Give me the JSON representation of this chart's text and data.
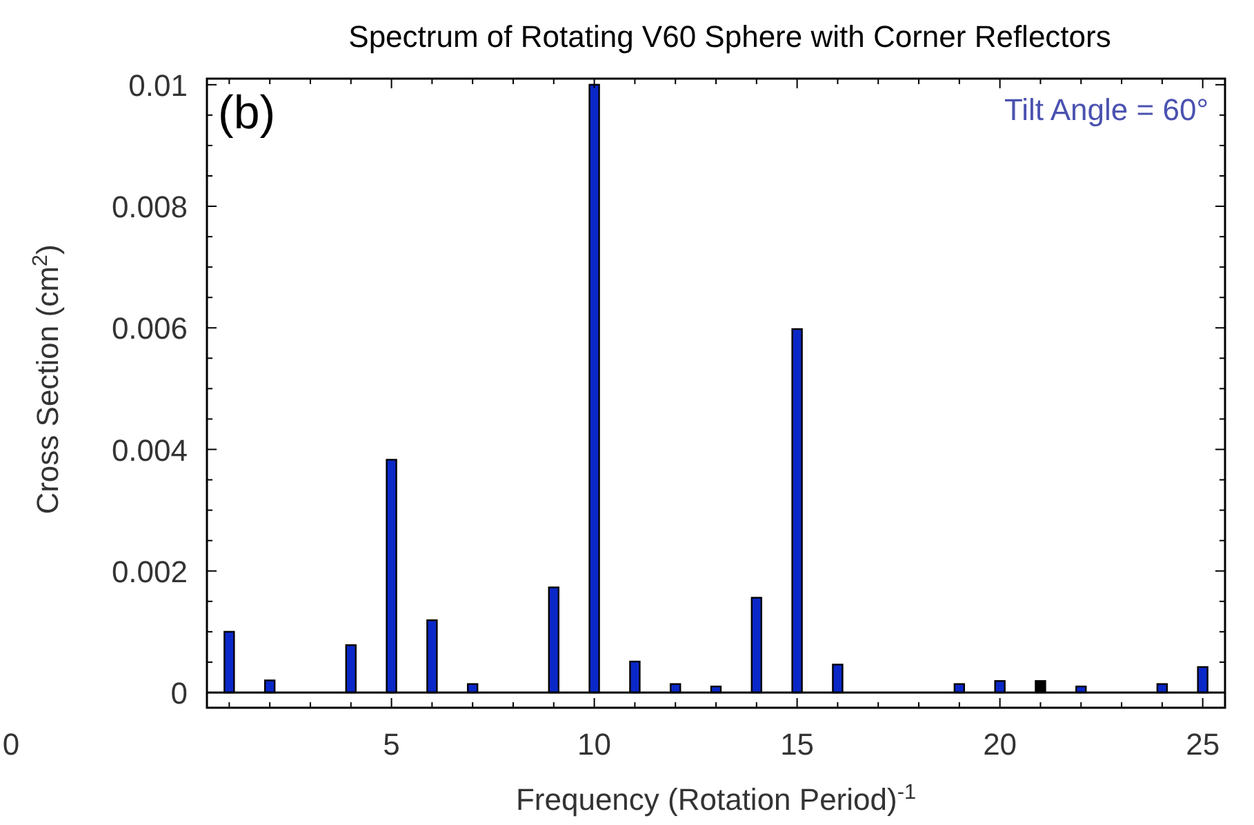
{
  "chart_data": {
    "type": "bar",
    "title": "Spectrum of Rotating V60 Sphere with Corner Reflectors",
    "xlabel": "Frequency (Rotation Period)$^{-1}$",
    "ylabel": "Cross Section (cm$^{2}$)",
    "annotations": [
      "(b)",
      "Tilt Angle = 60°",
      "0"
    ],
    "x": [
      1,
      2,
      4,
      5,
      6,
      7,
      9,
      10,
      11,
      12,
      13,
      14,
      15,
      16,
      19,
      20,
      21,
      22,
      24,
      25
    ],
    "values": [
      0.001,
      0.0002,
      0.00078,
      0.00383,
      0.00119,
      0.00014,
      0.00173,
      0.01,
      0.00051,
      0.00014,
      0.0001,
      0.00156,
      0.00598,
      0.00046,
      0.00014,
      0.00019,
      0.00019,
      0.0001,
      0.00014,
      0.00042
    ],
    "colors": [
      "#0a28c8",
      "#0a28c8",
      "#0a28c8",
      "#0a28c8",
      "#0a28c8",
      "#0a28c8",
      "#0a28c8",
      "#0a28c8",
      "#0a28c8",
      "#0a28c8",
      "#0a28c8",
      "#0a28c8",
      "#0a28c8",
      "#0a28c8",
      "#0a28c8",
      "#0a28c8",
      "#000000",
      "#0a28c8",
      "#0a28c8",
      "#0a28c8"
    ],
    "xlim": [
      0.45,
      25.55
    ],
    "xticks": [
      {
        "value": 1,
        "label": null
      },
      {
        "value": 2,
        "label": null
      },
      {
        "value": 3,
        "label": null
      },
      {
        "value": 4,
        "label": null
      },
      5,
      {
        "value": 6,
        "label": null
      },
      {
        "value": 7,
        "label": null
      },
      {
        "value": 8,
        "label": null
      },
      {
        "value": 9,
        "label": null
      },
      10,
      {
        "value": 11,
        "label": null
      },
      {
        "value": 12,
        "label": null
      },
      {
        "value": 13,
        "label": null
      },
      {
        "value": 14,
        "label": null
      },
      15,
      {
        "value": 16,
        "label": null
      },
      {
        "value": 17,
        "label": null
      },
      {
        "value": 18,
        "label": null
      },
      {
        "value": 19,
        "label": null
      },
      20,
      {
        "value": 21,
        "label": null
      },
      {
        "value": 22,
        "label": null
      },
      {
        "value": 23,
        "label": null
      },
      {
        "value": 24,
        "label": null
      },
      25
    ],
    "ylim": [
      -0.00025,
      0.0101
    ],
    "yticks": [
      0,
      {
        "value": 0.0005,
        "label": null
      },
      {
        "value": 0.001,
        "label": null
      },
      {
        "value": 0.0015,
        "label": null
      },
      0.002,
      {
        "value": 0.0025,
        "label": null
      },
      {
        "value": 0.003,
        "label": null
      },
      {
        "value": 0.0035,
        "label": null
      },
      0.004,
      {
        "value": 0.0045,
        "label": null
      },
      {
        "value": 0.005,
        "label": null
      },
      {
        "value": 0.0055,
        "label": null
      },
      0.006,
      {
        "value": 0.0065,
        "label": null
      },
      {
        "value": 0.007,
        "label": null
      },
      {
        "value": 0.0075,
        "label": null
      },
      0.008,
      {
        "value": 0.0085,
        "label": null
      },
      {
        "value": 0.009,
        "label": null
      },
      {
        "value": 0.0095,
        "label": null
      },
      0.01
    ],
    "ref_lines": [
      {
        "axis": "y",
        "value": 0,
        "color": "#000000"
      }
    ],
    "grid": false
  }
}
